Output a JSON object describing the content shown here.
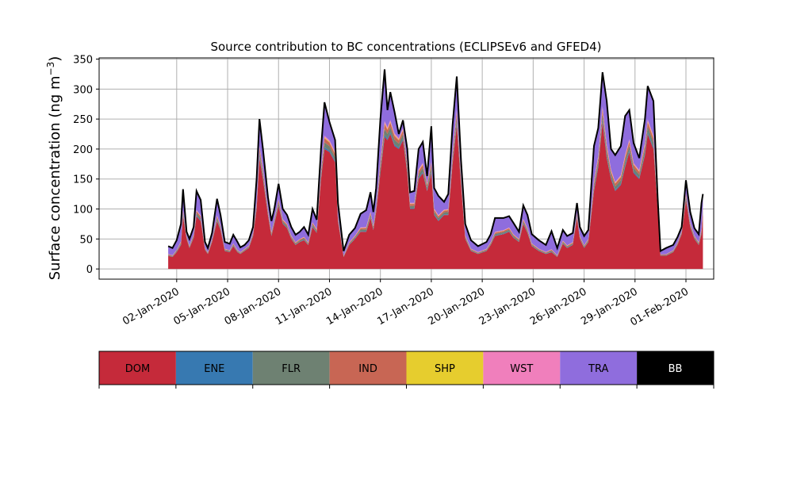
{
  "chart_data": {
    "type": "area",
    "stacked": true,
    "title": "Source contribution to BC concentrations (ECLIPSEv6 and GFED4)",
    "ylabel": "Surface concentration (ng m",
    "ylabel_sup": "−3",
    "ylabel_close": ")",
    "ylim": [
      -17,
      352
    ],
    "y_ticks": [
      0,
      50,
      100,
      150,
      200,
      250,
      300,
      350
    ],
    "x_date_range": [
      "2019-12-31",
      "2020-02-01"
    ],
    "x_ticks": [
      "02-Jan-2020",
      "05-Jan-2020",
      "08-Jan-2020",
      "11-Jan-2020",
      "14-Jan-2020",
      "17-Jan-2020",
      "20-Jan-2020",
      "23-Jan-2020",
      "26-Jan-2020",
      "29-Jan-2020",
      "01-Feb-2020"
    ],
    "grid": true,
    "total_line_color": "#000000",
    "series_colors": {
      "DOM": "#c52a3a",
      "ENE": "#3779b1",
      "FLR": "#6e8172",
      "IND": "#c86654",
      "SHP": "#e6cd2e",
      "WST": "#f07fbc",
      "TRA": "#8f6ddd",
      "BB": "#000000"
    },
    "series": [
      {
        "name": "DOM",
        "points": [
          [
            "2020-01-01T12",
            22
          ],
          [
            "2020-01-01T18",
            20
          ],
          [
            "2020-01-02T00",
            28
          ],
          [
            "2020-01-02T06",
            40
          ],
          [
            "2020-01-02T09",
            88
          ],
          [
            "2020-01-02T14",
            50
          ],
          [
            "2020-01-02T18",
            35
          ],
          [
            "2020-01-03T00",
            52
          ],
          [
            "2020-01-03T04",
            88
          ],
          [
            "2020-01-03T10",
            80
          ],
          [
            "2020-01-03T16",
            32
          ],
          [
            "2020-01-03T20",
            25
          ],
          [
            "2020-01-04T02",
            45
          ],
          [
            "2020-01-04T09",
            80
          ],
          [
            "2020-01-04T14",
            65
          ],
          [
            "2020-01-04T20",
            30
          ],
          [
            "2020-01-05T03",
            28
          ],
          [
            "2020-01-05T08",
            38
          ],
          [
            "2020-01-05T14",
            28
          ],
          [
            "2020-01-05T18",
            25
          ],
          [
            "2020-01-06T00",
            30
          ],
          [
            "2020-01-06T06",
            35
          ],
          [
            "2020-01-06T12",
            55
          ],
          [
            "2020-01-06T17",
            100
          ],
          [
            "2020-01-06T21",
            185
          ],
          [
            "2020-01-07T02",
            150
          ],
          [
            "2020-01-07T09",
            90
          ],
          [
            "2020-01-07T14",
            55
          ],
          [
            "2020-01-07T18",
            75
          ],
          [
            "2020-01-08T00",
            105
          ],
          [
            "2020-01-08T06",
            75
          ],
          [
            "2020-01-08T12",
            68
          ],
          [
            "2020-01-08T18",
            50
          ],
          [
            "2020-01-09T00",
            40
          ],
          [
            "2020-01-09T06",
            45
          ],
          [
            "2020-01-09T12",
            48
          ],
          [
            "2020-01-09T18",
            40
          ],
          [
            "2020-01-10T00",
            70
          ],
          [
            "2020-01-10T06",
            60
          ],
          [
            "2020-01-10T12",
            150
          ],
          [
            "2020-01-10T17",
            200
          ],
          [
            "2020-01-11T00",
            195
          ],
          [
            "2020-01-11T08",
            178
          ],
          [
            "2020-01-11T12",
            80
          ],
          [
            "2020-01-11T20",
            20
          ],
          [
            "2020-01-12T04",
            40
          ],
          [
            "2020-01-12T12",
            50
          ],
          [
            "2020-01-12T20",
            62
          ],
          [
            "2020-01-13T04",
            62
          ],
          [
            "2020-01-13T10",
            85
          ],
          [
            "2020-01-13T14",
            65
          ],
          [
            "2020-01-13T18",
            95
          ],
          [
            "2020-01-14T00",
            160
          ],
          [
            "2020-01-14T06",
            220
          ],
          [
            "2020-01-14T10",
            215
          ],
          [
            "2020-01-14T14",
            225
          ],
          [
            "2020-01-14T20",
            205
          ],
          [
            "2020-01-15T02",
            200
          ],
          [
            "2020-01-15T08",
            215
          ],
          [
            "2020-01-15T14",
            160
          ],
          [
            "2020-01-15T18",
            100
          ],
          [
            "2020-01-16T00",
            100
          ],
          [
            "2020-01-16T06",
            150
          ],
          [
            "2020-01-16T12",
            160
          ],
          [
            "2020-01-16T18",
            130
          ],
          [
            "2020-01-17T00",
            160
          ],
          [
            "2020-01-17T04",
            90
          ],
          [
            "2020-01-17T10",
            80
          ],
          [
            "2020-01-17T18",
            90
          ],
          [
            "2020-01-18T00",
            90
          ],
          [
            "2020-01-18T06",
            175
          ],
          [
            "2020-01-18T12",
            240
          ],
          [
            "2020-01-18T18",
            140
          ],
          [
            "2020-01-19T00",
            50
          ],
          [
            "2020-01-19T08",
            30
          ],
          [
            "2020-01-19T18",
            25
          ],
          [
            "2020-01-20T06",
            30
          ],
          [
            "2020-01-20T12",
            40
          ],
          [
            "2020-01-20T18",
            55
          ],
          [
            "2020-01-21T06",
            58
          ],
          [
            "2020-01-21T14",
            62
          ],
          [
            "2020-01-21T20",
            52
          ],
          [
            "2020-01-22T04",
            45
          ],
          [
            "2020-01-22T10",
            75
          ],
          [
            "2020-01-22T16",
            60
          ],
          [
            "2020-01-22T22",
            38
          ],
          [
            "2020-01-23T08",
            30
          ],
          [
            "2020-01-23T18",
            25
          ],
          [
            "2020-01-24T02",
            28
          ],
          [
            "2020-01-24T10",
            20
          ],
          [
            "2020-01-24T18",
            42
          ],
          [
            "2020-01-25T00",
            35
          ],
          [
            "2020-01-25T08",
            40
          ],
          [
            "2020-01-25T14",
            85
          ],
          [
            "2020-01-25T18",
            50
          ],
          [
            "2020-01-26T00",
            35
          ],
          [
            "2020-01-26T06",
            45
          ],
          [
            "2020-01-26T14",
            130
          ],
          [
            "2020-01-26T20",
            170
          ],
          [
            "2020-01-27T02",
            245
          ],
          [
            "2020-01-27T08",
            185
          ],
          [
            "2020-01-27T14",
            150
          ],
          [
            "2020-01-27T20",
            130
          ],
          [
            "2020-01-28T04",
            140
          ],
          [
            "2020-01-28T10",
            170
          ],
          [
            "2020-01-28T16",
            195
          ],
          [
            "2020-01-28T22",
            160
          ],
          [
            "2020-01-29T06",
            150
          ],
          [
            "2020-01-29T14",
            190
          ],
          [
            "2020-01-29T18",
            225
          ],
          [
            "2020-01-30T02",
            200
          ],
          [
            "2020-01-30T08",
            100
          ],
          [
            "2020-01-30T12",
            22
          ],
          [
            "2020-01-30T20",
            22
          ],
          [
            "2020-01-31T06",
            28
          ],
          [
            "2020-01-31T12",
            40
          ],
          [
            "2020-01-31T18",
            58
          ],
          [
            "2020-02-01T00",
            115
          ],
          [
            "2020-02-01T06",
            70
          ],
          [
            "2020-02-01T12",
            50
          ],
          [
            "2020-02-01T18",
            40
          ],
          [
            "2020-02-01T22",
            58
          ],
          [
            "2020-02-02T00",
            95
          ]
        ]
      },
      {
        "name": "ENE",
        "fraction_of_total": 0.01
      },
      {
        "name": "FLR",
        "fraction_of_total": 0.03
      },
      {
        "name": "IND",
        "fraction_of_total": 0.025
      },
      {
        "name": "SHP",
        "fraction_of_total": 0.005
      },
      {
        "name": "WST",
        "fraction_of_total": 0.01
      },
      {
        "name": "TRA",
        "fraction_of_total": "remainder"
      },
      {
        "name": "BB",
        "points": [
          [
            "2020-01-01T12",
            38
          ],
          [
            "2020-01-01T18",
            35
          ],
          [
            "2020-01-02T00",
            48
          ],
          [
            "2020-01-02T06",
            75
          ],
          [
            "2020-01-02T09",
            133
          ],
          [
            "2020-01-02T14",
            62
          ],
          [
            "2020-01-02T18",
            50
          ],
          [
            "2020-01-03T00",
            70
          ],
          [
            "2020-01-03T04",
            130
          ],
          [
            "2020-01-03T10",
            115
          ],
          [
            "2020-01-03T16",
            45
          ],
          [
            "2020-01-03T20",
            35
          ],
          [
            "2020-01-04T02",
            60
          ],
          [
            "2020-01-04T09",
            117
          ],
          [
            "2020-01-04T14",
            90
          ],
          [
            "2020-01-04T20",
            45
          ],
          [
            "2020-01-05T03",
            42
          ],
          [
            "2020-01-05T08",
            57
          ],
          [
            "2020-01-05T14",
            45
          ],
          [
            "2020-01-05T18",
            36
          ],
          [
            "2020-01-06T00",
            40
          ],
          [
            "2020-01-06T06",
            48
          ],
          [
            "2020-01-06T12",
            70
          ],
          [
            "2020-01-06T17",
            150
          ],
          [
            "2020-01-06T21",
            250
          ],
          [
            "2020-01-07T02",
            200
          ],
          [
            "2020-01-07T09",
            120
          ],
          [
            "2020-01-07T14",
            80
          ],
          [
            "2020-01-07T18",
            100
          ],
          [
            "2020-01-08T00",
            142
          ],
          [
            "2020-01-08T06",
            100
          ],
          [
            "2020-01-08T12",
            90
          ],
          [
            "2020-01-08T18",
            70
          ],
          [
            "2020-01-09T00",
            57
          ],
          [
            "2020-01-09T06",
            62
          ],
          [
            "2020-01-09T12",
            70
          ],
          [
            "2020-01-09T18",
            57
          ],
          [
            "2020-01-10T00",
            100
          ],
          [
            "2020-01-10T06",
            82
          ],
          [
            "2020-01-10T12",
            200
          ],
          [
            "2020-01-10T17",
            278
          ],
          [
            "2020-01-11T00",
            245
          ],
          [
            "2020-01-11T08",
            215
          ],
          [
            "2020-01-11T12",
            110
          ],
          [
            "2020-01-11T20",
            30
          ],
          [
            "2020-01-12T04",
            57
          ],
          [
            "2020-01-12T12",
            68
          ],
          [
            "2020-01-12T20",
            92
          ],
          [
            "2020-01-13T04",
            98
          ],
          [
            "2020-01-13T10",
            128
          ],
          [
            "2020-01-13T14",
            95
          ],
          [
            "2020-01-13T18",
            135
          ],
          [
            "2020-01-14T00",
            250
          ],
          [
            "2020-01-14T06",
            333
          ],
          [
            "2020-01-14T10",
            265
          ],
          [
            "2020-01-14T14",
            295
          ],
          [
            "2020-01-14T20",
            262
          ],
          [
            "2020-01-15T02",
            225
          ],
          [
            "2020-01-15T08",
            248
          ],
          [
            "2020-01-15T14",
            200
          ],
          [
            "2020-01-15T18",
            128
          ],
          [
            "2020-01-16T00",
            130
          ],
          [
            "2020-01-16T06",
            200
          ],
          [
            "2020-01-16T12",
            212
          ],
          [
            "2020-01-16T18",
            155
          ],
          [
            "2020-01-17T00",
            238
          ],
          [
            "2020-01-17T04",
            135
          ],
          [
            "2020-01-17T10",
            122
          ],
          [
            "2020-01-17T18",
            112
          ],
          [
            "2020-01-18T00",
            125
          ],
          [
            "2020-01-18T06",
            240
          ],
          [
            "2020-01-18T12",
            321
          ],
          [
            "2020-01-18T18",
            180
          ],
          [
            "2020-01-19T00",
            75
          ],
          [
            "2020-01-19T08",
            48
          ],
          [
            "2020-01-19T18",
            38
          ],
          [
            "2020-01-20T06",
            45
          ],
          [
            "2020-01-20T12",
            58
          ],
          [
            "2020-01-20T18",
            85
          ],
          [
            "2020-01-21T06",
            85
          ],
          [
            "2020-01-21T14",
            88
          ],
          [
            "2020-01-21T20",
            77
          ],
          [
            "2020-01-22T04",
            62
          ],
          [
            "2020-01-22T10",
            106
          ],
          [
            "2020-01-22T16",
            90
          ],
          [
            "2020-01-22T22",
            58
          ],
          [
            "2020-01-23T08",
            48
          ],
          [
            "2020-01-23T18",
            40
          ],
          [
            "2020-01-24T02",
            63
          ],
          [
            "2020-01-24T10",
            35
          ],
          [
            "2020-01-24T18",
            65
          ],
          [
            "2020-01-25T00",
            55
          ],
          [
            "2020-01-25T08",
            60
          ],
          [
            "2020-01-25T14",
            110
          ],
          [
            "2020-01-25T18",
            70
          ],
          [
            "2020-01-26T00",
            55
          ],
          [
            "2020-01-26T06",
            65
          ],
          [
            "2020-01-26T14",
            205
          ],
          [
            "2020-01-26T20",
            235
          ],
          [
            "2020-01-27T02",
            328
          ],
          [
            "2020-01-27T08",
            280
          ],
          [
            "2020-01-27T14",
            200
          ],
          [
            "2020-01-27T20",
            190
          ],
          [
            "2020-01-28T04",
            205
          ],
          [
            "2020-01-28T10",
            255
          ],
          [
            "2020-01-28T16",
            265
          ],
          [
            "2020-01-28T22",
            210
          ],
          [
            "2020-01-29T06",
            185
          ],
          [
            "2020-01-29T14",
            250
          ],
          [
            "2020-01-29T18",
            305
          ],
          [
            "2020-01-30T02",
            280
          ],
          [
            "2020-01-30T08",
            120
          ],
          [
            "2020-01-30T12",
            30
          ],
          [
            "2020-01-30T20",
            35
          ],
          [
            "2020-01-31T06",
            40
          ],
          [
            "2020-01-31T12",
            53
          ],
          [
            "2020-01-31T18",
            70
          ],
          [
            "2020-02-01T00",
            148
          ],
          [
            "2020-02-01T06",
            95
          ],
          [
            "2020-02-01T12",
            68
          ],
          [
            "2020-02-01T18",
            58
          ],
          [
            "2020-02-01T22",
            110
          ],
          [
            "2020-02-02T00",
            125
          ]
        ]
      }
    ],
    "legend": [
      "DOM",
      "ENE",
      "FLR",
      "IND",
      "SHP",
      "WST",
      "TRA",
      "BB"
    ]
  }
}
